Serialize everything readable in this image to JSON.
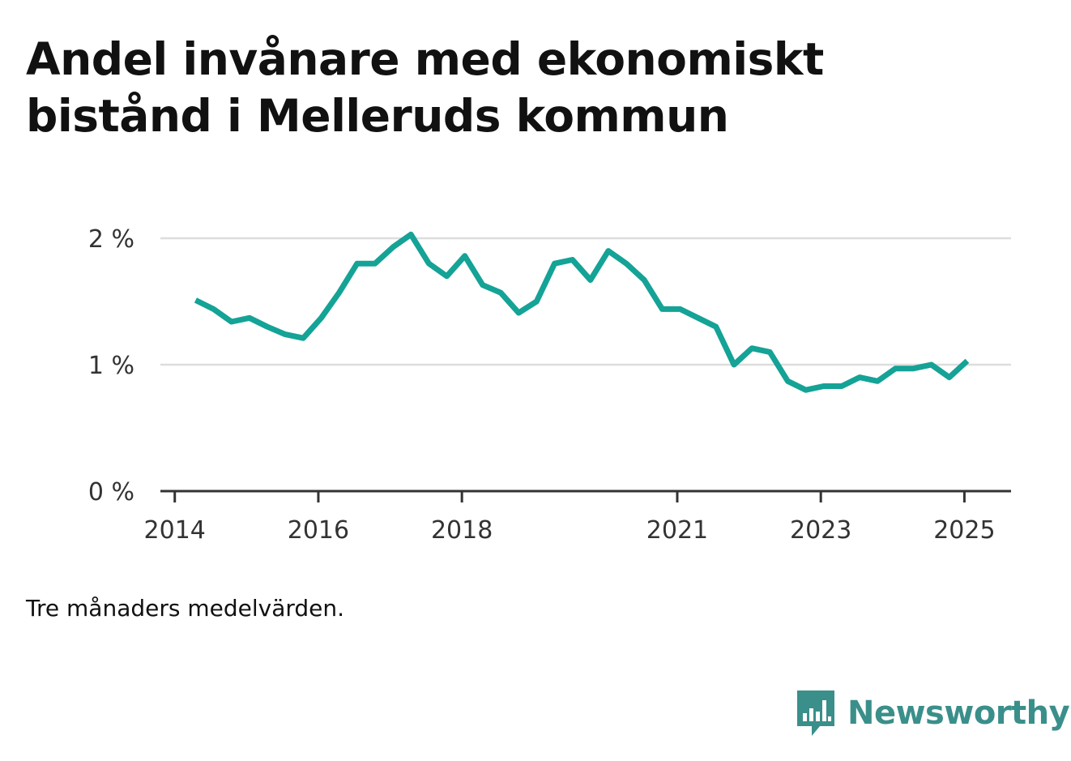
{
  "title": "Andel invånare med ekonomiskt bistånd i Melleruds kommun",
  "note": "Tre månaders medelvärden.",
  "brand": {
    "name": "Newsworthy",
    "icon": "bar-chart-speech-bubble-icon",
    "color": "#3a8f8a"
  },
  "colors": {
    "line": "#14a396",
    "grid": "#dddddd",
    "axis": "#333333"
  },
  "chart_data": {
    "type": "line",
    "title": "Andel invånare med ekonomiskt bistånd i Melleruds kommun",
    "xlabel": "",
    "ylabel": "",
    "ylim": [
      0,
      2
    ],
    "y_ticks": [
      {
        "value": 0,
        "label": "0 %"
      },
      {
        "value": 1,
        "label": "1 %"
      },
      {
        "value": 2,
        "label": "2 %"
      }
    ],
    "x_ticks": [
      {
        "value": 2014,
        "label": "2014"
      },
      {
        "value": 2016,
        "label": "2016"
      },
      {
        "value": 2018,
        "label": "2018"
      },
      {
        "value": 2021,
        "label": "2021"
      },
      {
        "value": 2023,
        "label": "2023"
      },
      {
        "value": 2025,
        "label": "2025"
      }
    ],
    "xlim": [
      2013.8,
      2025.65
    ],
    "grid": true,
    "series": [
      {
        "x": [
          2014.29,
          2014.54,
          2014.79,
          2015.04,
          2015.29,
          2015.54,
          2015.79,
          2016.04,
          2016.29,
          2016.54,
          2016.79,
          2017.04,
          2017.29,
          2017.54,
          2017.79,
          2018.04,
          2018.29,
          2018.54,
          2018.79,
          2019.04,
          2019.29,
          2019.54,
          2019.79,
          2020.04,
          2020.29,
          2020.54,
          2020.79,
          2021.04,
          2021.29,
          2021.54,
          2021.79,
          2022.04,
          2022.29,
          2022.54,
          2022.79,
          2023.04,
          2023.29,
          2023.54,
          2023.79,
          2024.04,
          2024.29,
          2024.54,
          2024.79,
          2025.04
        ],
        "values": [
          1.51,
          1.44,
          1.34,
          1.37,
          1.3,
          1.24,
          1.21,
          1.37,
          1.57,
          1.8,
          1.8,
          1.93,
          2.03,
          1.8,
          1.7,
          1.86,
          1.63,
          1.57,
          1.41,
          1.5,
          1.8,
          1.83,
          1.67,
          1.9,
          1.8,
          1.67,
          1.44,
          1.44,
          1.37,
          1.3,
          1.0,
          1.13,
          1.1,
          0.87,
          0.8,
          0.83,
          0.83,
          0.9,
          0.87,
          0.97,
          0.97,
          1.0,
          0.9,
          1.03
        ]
      }
    ]
  }
}
